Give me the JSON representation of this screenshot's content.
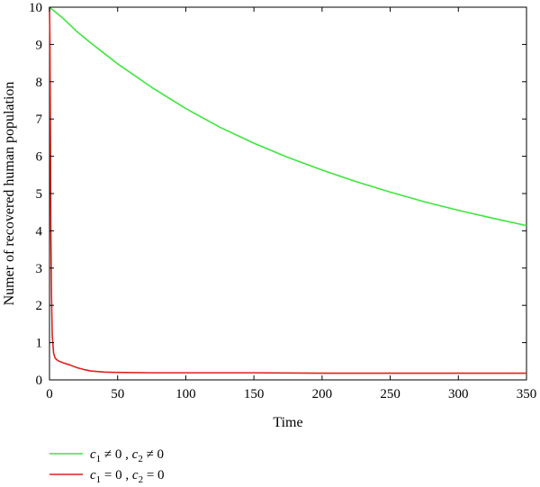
{
  "chart_data": {
    "type": "line",
    "title": "",
    "xlabel": "Time",
    "ylabel": "Numer of recovered human population",
    "xlim": [
      0,
      350
    ],
    "ylim": [
      0,
      10
    ],
    "xticks": [
      0,
      50,
      100,
      150,
      200,
      250,
      300,
      350
    ],
    "yticks": [
      0,
      1,
      2,
      3,
      4,
      5,
      6,
      7,
      8,
      9,
      10
    ],
    "grid": false,
    "legend_position": "bottom-left outside",
    "series": [
      {
        "name": "c1 ≠ 0 , c2 ≠ 0",
        "legend": {
          "a": "c",
          "a_sub": "1",
          "op1": " ≠ 0 , ",
          "b": "c",
          "b_sub": "2",
          "op2": " ≠ 0"
        },
        "color": "#3de63d",
        "x": [
          0,
          5,
          10,
          20,
          30,
          50,
          75,
          100,
          125,
          150,
          175,
          200,
          225,
          250,
          275,
          300,
          325,
          350
        ],
        "y": [
          10.0,
          9.85,
          9.7,
          9.35,
          9.05,
          8.48,
          7.85,
          7.28,
          6.78,
          6.35,
          5.97,
          5.63,
          5.32,
          5.04,
          4.78,
          4.55,
          4.34,
          4.14
        ]
      },
      {
        "name": "c1 = 0 , c2 = 0",
        "legend": {
          "a": "c",
          "a_sub": "1",
          "op1": " = 0 , ",
          "b": "c",
          "b_sub": "2",
          "op2": " = 0"
        },
        "color": "#e0201b",
        "x": [
          0,
          0.3,
          0.7,
          1,
          1.5,
          2,
          3,
          4,
          5,
          7,
          10,
          15,
          20,
          25,
          30,
          40,
          50,
          75,
          100,
          150,
          200,
          250,
          300,
          350
        ],
        "y": [
          10.0,
          9.2,
          6.5,
          4.0,
          2.2,
          1.2,
          0.72,
          0.6,
          0.55,
          0.5,
          0.46,
          0.4,
          0.33,
          0.28,
          0.24,
          0.21,
          0.2,
          0.19,
          0.19,
          0.19,
          0.18,
          0.18,
          0.18,
          0.18
        ]
      }
    ]
  }
}
